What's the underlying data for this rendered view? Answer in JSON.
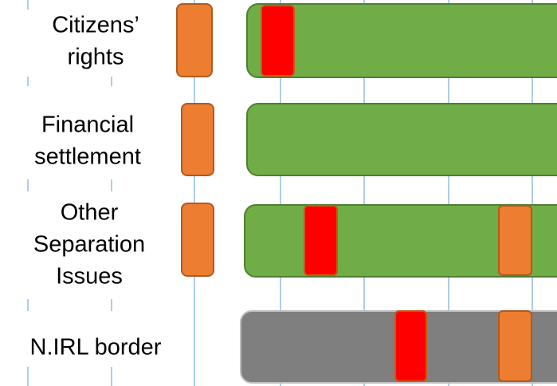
{
  "rows": [
    {
      "label_lines": [
        "Citizens’",
        "rights"
      ]
    },
    {
      "label_lines": [
        "Financial",
        "settlement"
      ]
    },
    {
      "label_lines": [
        "Other",
        "Separation",
        "Issues"
      ]
    },
    {
      "label_lines": [
        "N.IRL border"
      ]
    }
  ]
}
